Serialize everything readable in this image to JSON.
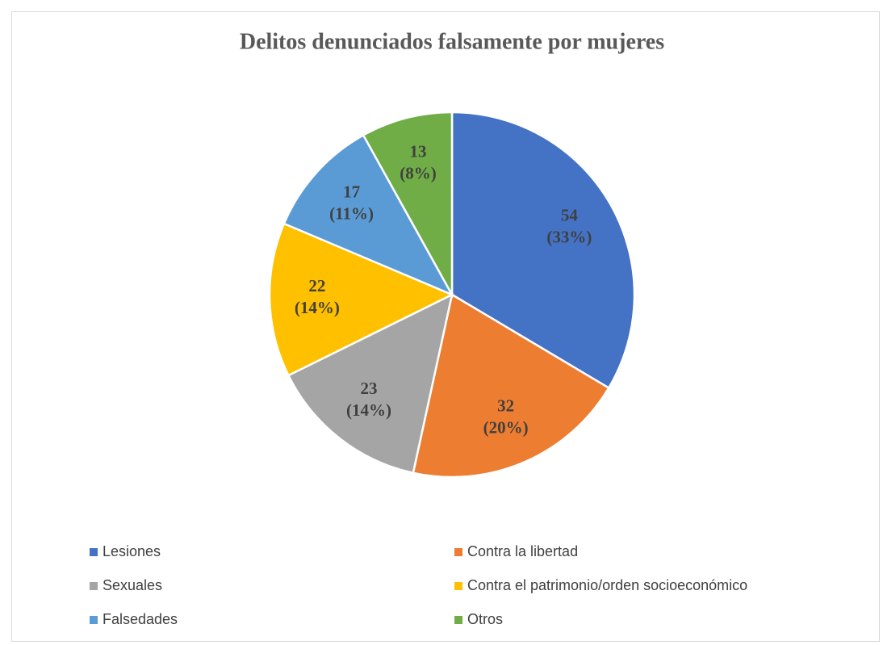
{
  "chart_data": {
    "type": "pie",
    "title": "Delitos denunciados falsamente por mujeres",
    "categories": [
      "Lesiones",
      "Contra la libertad",
      "Sexuales",
      "Contra el patrimonio/orden socioeconómico",
      "Falsedades",
      "Otros"
    ],
    "values": [
      54,
      32,
      23,
      22,
      17,
      13
    ],
    "value_labels": [
      [
        "54",
        "(33%)"
      ],
      [
        "32",
        "(20%)"
      ],
      [
        "23",
        "(14%)"
      ],
      [
        "22",
        "(14%)"
      ],
      [
        "17",
        "(11%)"
      ],
      [
        "13",
        "(8%)"
      ]
    ],
    "colors": [
      "#4472c4",
      "#ed7d31",
      "#a5a5a5",
      "#ffc000",
      "#5b9bd5",
      "#70ad47"
    ],
    "legend": "bottom"
  }
}
